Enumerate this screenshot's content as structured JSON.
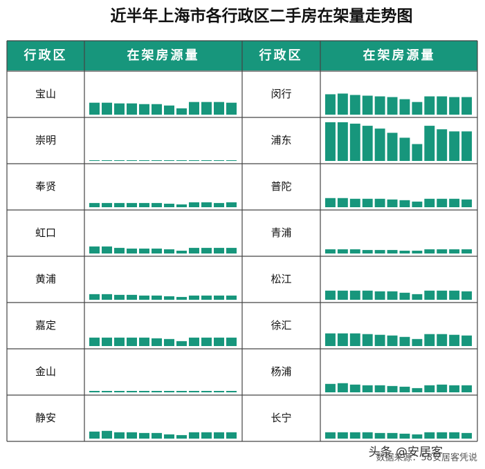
{
  "title": "近半年上海市各行政区二手房在架量走势图",
  "header": [
    "行政区",
    "在架房源量",
    "行政区",
    "在架房源量"
  ],
  "bar_color": "#17967c",
  "districts": [
    {
      "name": "宝山",
      "values": [
        17,
        17,
        16,
        16,
        15,
        15,
        13,
        9,
        18,
        18,
        18,
        17
      ]
    },
    {
      "name": "崇明",
      "values": [
        1,
        1,
        1,
        1,
        1,
        1,
        1,
        1,
        1,
        1,
        1,
        1
      ]
    },
    {
      "name": "奉贤",
      "values": [
        6,
        6,
        6,
        6,
        6,
        6,
        5,
        4,
        7,
        7,
        6,
        7
      ]
    },
    {
      "name": "虹口",
      "values": [
        10,
        10,
        8,
        7,
        7,
        7,
        6,
        4,
        8,
        8,
        8,
        8
      ]
    },
    {
      "name": "黄浦",
      "values": [
        8,
        8,
        7,
        7,
        6,
        6,
        5,
        4,
        6,
        6,
        6,
        6
      ]
    },
    {
      "name": "嘉定",
      "values": [
        12,
        12,
        12,
        12,
        12,
        11,
        10,
        7,
        12,
        12,
        12,
        12
      ]
    },
    {
      "name": "金山",
      "values": [
        2,
        2,
        2,
        2,
        2,
        2,
        2,
        2,
        2,
        2,
        2,
        2
      ]
    },
    {
      "name": "静安",
      "values": [
        10,
        11,
        9,
        9,
        8,
        8,
        6,
        5,
        9,
        9,
        9,
        9
      ]
    },
    {
      "name": "闵行",
      "values": [
        29,
        30,
        28,
        27,
        26,
        25,
        22,
        18,
        26,
        26,
        25,
        25
      ]
    },
    {
      "name": "浦东",
      "values": [
        55,
        55,
        53,
        50,
        46,
        40,
        33,
        24,
        50,
        45,
        42,
        42
      ]
    },
    {
      "name": "普陀",
      "values": [
        13,
        13,
        12,
        12,
        12,
        11,
        10,
        8,
        12,
        12,
        12,
        11
      ]
    },
    {
      "name": "青浦",
      "values": [
        6,
        6,
        6,
        5,
        5,
        5,
        4,
        4,
        6,
        6,
        6,
        6
      ]
    },
    {
      "name": "松江",
      "values": [
        13,
        13,
        13,
        13,
        12,
        12,
        10,
        8,
        13,
        13,
        13,
        12
      ]
    },
    {
      "name": "徐汇",
      "values": [
        18,
        18,
        18,
        17,
        16,
        15,
        13,
        10,
        17,
        17,
        16,
        15
      ]
    },
    {
      "name": "杨浦",
      "values": [
        12,
        13,
        11,
        10,
        10,
        9,
        8,
        6,
        10,
        11,
        10,
        10
      ]
    },
    {
      "name": "长宁",
      "values": [
        9,
        9,
        9,
        9,
        8,
        8,
        7,
        6,
        9,
        9,
        9,
        8
      ]
    }
  ],
  "source": "数据来源：58安居客凭说",
  "watermark": "头条 @安居客"
}
